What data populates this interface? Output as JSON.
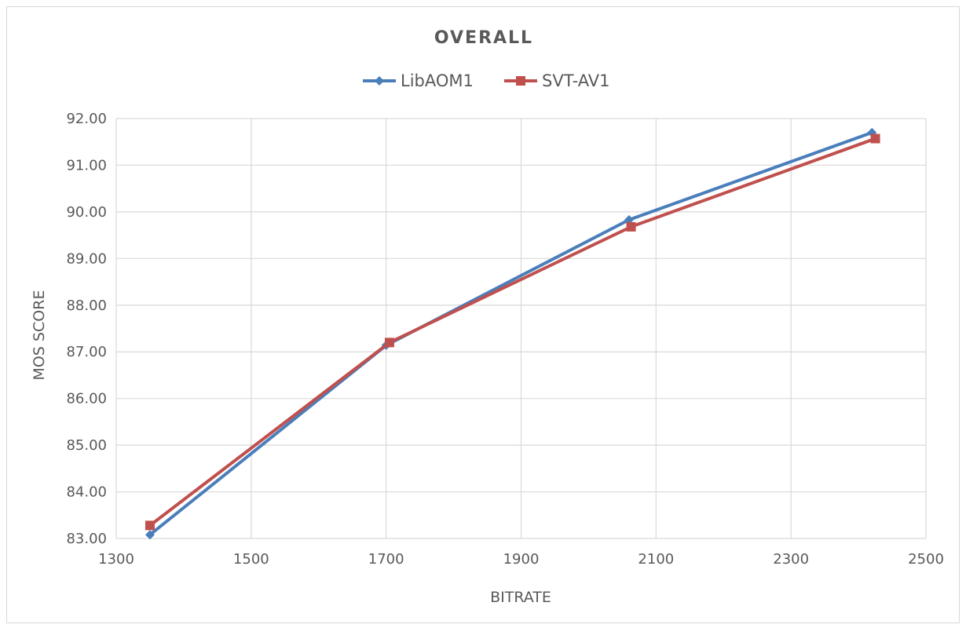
{
  "chart_data": {
    "type": "line",
    "title": "OVERALL",
    "xlabel": "BITRATE",
    "ylabel": "MOS SCORE",
    "xlim": [
      1300,
      2500
    ],
    "ylim": [
      83,
      92
    ],
    "x_ticks": [
      "1300",
      "1500",
      "1700",
      "1900",
      "2100",
      "2300",
      "2500"
    ],
    "y_ticks": [
      "83.00",
      "84.00",
      "85.00",
      "86.00",
      "87.00",
      "88.00",
      "89.00",
      "90.00",
      "91.00",
      "92.00"
    ],
    "grid": true,
    "legend_position": "top",
    "series": [
      {
        "name": "LibAOM1",
        "color": "#4a7ebb",
        "marker": "diamond",
        "x": [
          1350,
          1700,
          2060,
          2420
        ],
        "y": [
          83.08,
          87.14,
          89.83,
          91.7
        ]
      },
      {
        "name": "SVT-AV1",
        "color": "#c0504d",
        "marker": "square",
        "x": [
          1350,
          1705,
          2063,
          2425
        ],
        "y": [
          83.28,
          87.2,
          89.68,
          91.57
        ]
      }
    ]
  }
}
